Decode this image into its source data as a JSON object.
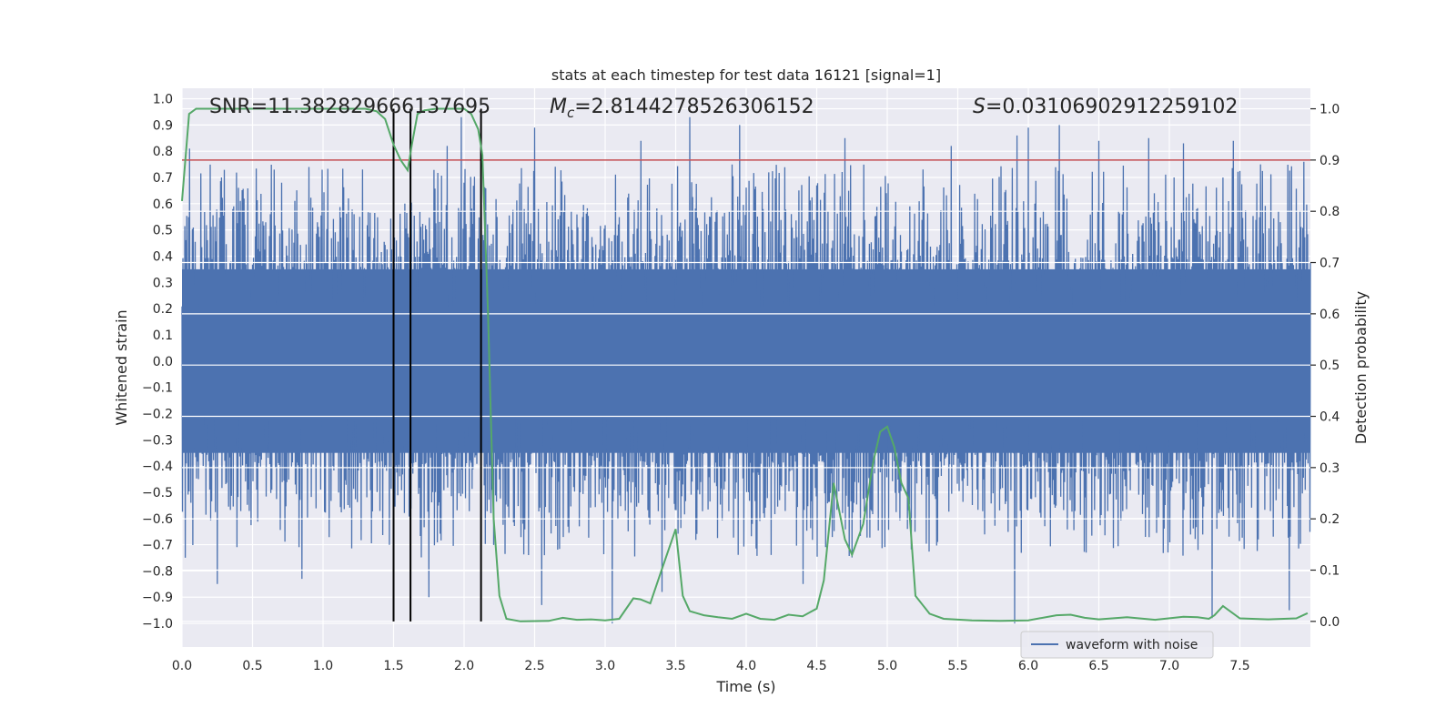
{
  "chart_data": {
    "type": "line",
    "title": "stats at each timestep for test data 16121 [signal=1]",
    "xlabel": "Time (s)",
    "ylabel_left": "Whitened strain",
    "ylabel_right": "Detection probability",
    "xlim": [
      0,
      8
    ],
    "ylim_left": [
      -1.09,
      1.04
    ],
    "ylim_right": [
      -0.05,
      1.04
    ],
    "x_ticks": [
      0.0,
      0.5,
      1.0,
      1.5,
      2.0,
      2.5,
      3.0,
      3.5,
      4.0,
      4.5,
      5.0,
      5.5,
      6.0,
      6.5,
      7.0,
      7.5
    ],
    "x_tick_labels": [
      "0.0",
      "0.5",
      "1.0",
      "1.5",
      "2.0",
      "2.5",
      "3.0",
      "3.5",
      "4.0",
      "4.5",
      "5.0",
      "5.5",
      "6.0",
      "6.5",
      "7.0",
      "7.5"
    ],
    "y_left_ticks": [
      1.0,
      0.9,
      0.8,
      0.7,
      0.6,
      0.5,
      0.4,
      0.3,
      0.2,
      0.1,
      0.0,
      -0.1,
      -0.2,
      -0.3,
      -0.4,
      -0.5,
      -0.6,
      -0.7,
      -0.8,
      -0.9,
      -1.0
    ],
    "y_left_tick_labels": [
      "1.0",
      "0.9",
      "0.8",
      "0.7",
      "0.6",
      "0.5",
      "0.4",
      "0.3",
      "0.2",
      "0.1",
      "0.0",
      "−0.1",
      "−0.2",
      "−0.3",
      "−0.4",
      "−0.5",
      "−0.6",
      "−0.7",
      "−0.8",
      "−0.9",
      "−1.0"
    ],
    "y_right_ticks": [
      1.0,
      0.9,
      0.8,
      0.7,
      0.6,
      0.5,
      0.4,
      0.3,
      0.2,
      0.1,
      0.0
    ],
    "y_right_tick_labels": [
      "1.0",
      "0.9",
      "0.8",
      "0.7",
      "0.6",
      "0.5",
      "0.4",
      "0.3",
      "0.2",
      "0.1",
      "0.0"
    ],
    "grid": true,
    "annotations": {
      "snr": "SNR=11.382829666137695",
      "mc_symbol": "M",
      "mc_sub": "c",
      "mc_value": "=2.8144278526306152",
      "s_symbol": "S",
      "s_value": "=0.03106902912259102"
    },
    "vertical_lines_x": [
      1.5,
      1.62,
      2.12
    ],
    "threshold": {
      "axis": "right",
      "value": 0.9,
      "color": "#c44e52"
    },
    "waveform": {
      "name": "waveform with noise",
      "color": "#4c72b0",
      "core_amplitude": 0.35,
      "max_peak": 0.94,
      "min_peak": -1.0,
      "highlighted_peaks": [
        [
          0.05,
          0.81
        ],
        [
          0.28,
          0.7
        ],
        [
          0.65,
          0.73
        ],
        [
          0.9,
          0.74
        ],
        [
          1.62,
          0.77
        ],
        [
          1.88,
          0.82
        ],
        [
          1.98,
          0.93
        ],
        [
          2.5,
          0.89
        ],
        [
          3.25,
          0.84
        ],
        [
          3.6,
          0.93
        ],
        [
          3.95,
          0.9
        ],
        [
          4.7,
          0.85
        ],
        [
          5.45,
          0.82
        ],
        [
          5.92,
          0.86
        ],
        [
          6.0,
          0.89
        ],
        [
          6.22,
          0.9
        ],
        [
          6.5,
          0.84
        ],
        [
          6.85,
          0.85
        ],
        [
          7.1,
          0.83
        ],
        [
          7.45,
          0.84
        ],
        [
          7.95,
          0.76
        ],
        [
          0.25,
          -0.85
        ],
        [
          0.85,
          -0.83
        ],
        [
          1.75,
          -0.9
        ],
        [
          2.55,
          -0.93
        ],
        [
          3.05,
          -1.0
        ],
        [
          3.4,
          -0.88
        ],
        [
          4.4,
          -0.85
        ],
        [
          5.9,
          -1.0
        ],
        [
          7.3,
          -0.98
        ],
        [
          7.85,
          -0.95
        ]
      ]
    },
    "detection_probability": {
      "color": "#55a868",
      "x": [
        0.0,
        0.05,
        0.1,
        0.2,
        0.4,
        0.6,
        0.8,
        1.0,
        1.2,
        1.3,
        1.38,
        1.44,
        1.5,
        1.55,
        1.6,
        1.63,
        1.67,
        1.72,
        1.8,
        1.9,
        2.0,
        2.05,
        2.1,
        2.13,
        2.17,
        2.21,
        2.25,
        2.3,
        2.4,
        2.6,
        2.7,
        2.8,
        2.9,
        3.0,
        3.1,
        3.2,
        3.25,
        3.32,
        3.4,
        3.5,
        3.55,
        3.6,
        3.7,
        3.8,
        3.9,
        4.0,
        4.1,
        4.2,
        4.3,
        4.4,
        4.5,
        4.55,
        4.62,
        4.7,
        4.75,
        4.83,
        4.9,
        4.95,
        5.0,
        5.05,
        5.1,
        5.15,
        5.2,
        5.3,
        5.4,
        5.6,
        5.8,
        6.0,
        6.2,
        6.3,
        6.4,
        6.5,
        6.7,
        6.9,
        7.1,
        7.2,
        7.28,
        7.32,
        7.38,
        7.5,
        7.7,
        7.9,
        7.98
      ],
      "y": [
        0.82,
        0.99,
        1.0,
        1.0,
        1.0,
        1.0,
        1.0,
        1.0,
        1.0,
        1.0,
        0.995,
        0.98,
        0.93,
        0.9,
        0.88,
        0.93,
        0.99,
        0.997,
        1.0,
        1.0,
        1.0,
        0.99,
        0.96,
        0.91,
        0.6,
        0.2,
        0.05,
        0.005,
        0.0,
        0.001,
        0.007,
        0.003,
        0.004,
        0.002,
        0.005,
        0.045,
        0.043,
        0.035,
        0.1,
        0.18,
        0.05,
        0.02,
        0.012,
        0.008,
        0.005,
        0.015,
        0.005,
        0.003,
        0.013,
        0.01,
        0.025,
        0.08,
        0.27,
        0.16,
        0.13,
        0.19,
        0.31,
        0.37,
        0.38,
        0.34,
        0.27,
        0.24,
        0.05,
        0.015,
        0.005,
        0.002,
        0.001,
        0.002,
        0.012,
        0.013,
        0.007,
        0.004,
        0.008,
        0.003,
        0.009,
        0.008,
        0.005,
        0.012,
        0.03,
        0.006,
        0.004,
        0.006,
        0.016
      ]
    },
    "legend": {
      "placement": "lower-center-right",
      "entries": [
        "waveform with noise"
      ]
    }
  }
}
